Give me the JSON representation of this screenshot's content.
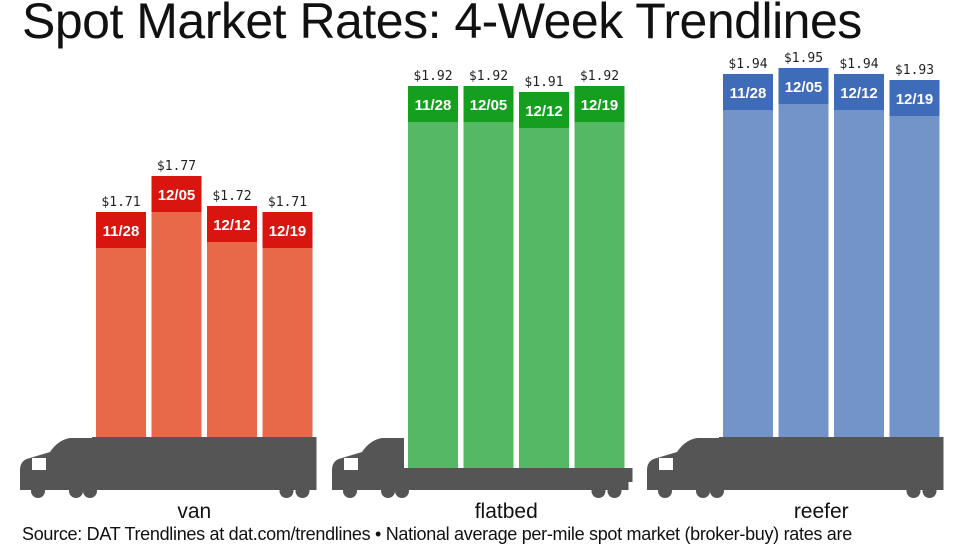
{
  "chart_data": {
    "type": "bar",
    "title": "Spot Market Rates: 4-Week Trendlines",
    "source": "Source: DAT Trendlines at dat.com/trendlines • National average per-mile spot market (broker-buy) rates are",
    "categories": [
      "11/28",
      "12/05",
      "12/12",
      "12/19"
    ],
    "series": [
      {
        "name": "van",
        "values": [
          1.71,
          1.77,
          1.72,
          1.71
        ],
        "labels": [
          "$1.71",
          "$1.77",
          "$1.72",
          "$1.71"
        ],
        "color": "#e8694a",
        "header_color": "#d9150f"
      },
      {
        "name": "flatbed",
        "values": [
          1.92,
          1.92,
          1.91,
          1.92
        ],
        "labels": [
          "$1.92",
          "$1.92",
          "$1.91",
          "$1.92"
        ],
        "color": "#55b865",
        "header_color": "#14a01e"
      },
      {
        "name": "reefer",
        "values": [
          1.94,
          1.95,
          1.94,
          1.93
        ],
        "labels": [
          "$1.94",
          "$1.95",
          "$1.94",
          "$1.93"
        ],
        "color": "#7394c8",
        "header_color": "#3f6cb8"
      }
    ],
    "truck_color": "#555555"
  }
}
